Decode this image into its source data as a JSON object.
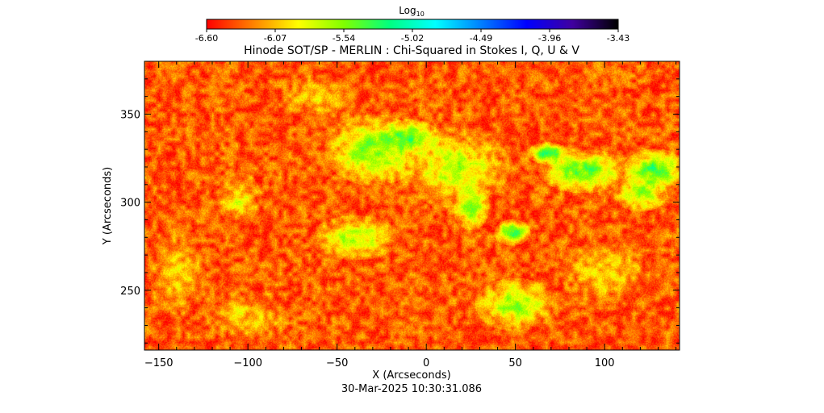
{
  "chart_data": {
    "type": "heatmap",
    "title": "Hinode SOT/SP - MERLIN : Chi-Squared in Stokes I, Q, U & V",
    "colorbar": {
      "label_base": "Log",
      "label_sub": "10",
      "min": -6.6,
      "max": -3.43,
      "ticks": [
        "-6.60",
        "-6.07",
        "-5.54",
        "-5.02",
        "-4.49",
        "-3.96",
        "-3.43"
      ],
      "colormap": [
        "#ff0000",
        "#ff8000",
        "#ffff00",
        "#80ff00",
        "#00ff80",
        "#00ffff",
        "#0080ff",
        "#0000ff",
        "#4000a0",
        "#000000"
      ]
    },
    "xlabel": "X (Arcseconds)",
    "ylabel": "Y (Arcseconds)",
    "xlim": [
      -158,
      142
    ],
    "ylim": [
      216,
      380
    ],
    "x_ticks": [
      -150,
      -100,
      -50,
      0,
      50,
      100
    ],
    "y_ticks": [
      250,
      300,
      350
    ],
    "x_tick_labels": [
      "−150",
      "−100",
      "−50",
      "0",
      "50",
      "100"
    ],
    "y_tick_labels": [
      "250",
      "300",
      "350"
    ],
    "background_level": -6.35,
    "regions": [
      {
        "x": -30,
        "y": 330,
        "rx": 22,
        "ry": 16,
        "level": -5.55
      },
      {
        "x": -10,
        "y": 337,
        "rx": 14,
        "ry": 8,
        "level": -5.35
      },
      {
        "x": 15,
        "y": 320,
        "rx": 25,
        "ry": 18,
        "level": -5.75
      },
      {
        "x": 25,
        "y": 297,
        "rx": 8,
        "ry": 10,
        "level": -5.55
      },
      {
        "x": 48,
        "y": 283,
        "rx": 8,
        "ry": 6,
        "level": -5.25
      },
      {
        "x": 68,
        "y": 328,
        "rx": 9,
        "ry": 5,
        "level": -5.25
      },
      {
        "x": 88,
        "y": 318,
        "rx": 20,
        "ry": 10,
        "level": -5.45
      },
      {
        "x": 128,
        "y": 318,
        "rx": 14,
        "ry": 10,
        "level": -5.35
      },
      {
        "x": 120,
        "y": 305,
        "rx": 12,
        "ry": 8,
        "level": -5.55
      },
      {
        "x": 50,
        "y": 242,
        "rx": 18,
        "ry": 12,
        "level": -5.65
      },
      {
        "x": -40,
        "y": 280,
        "rx": 20,
        "ry": 10,
        "level": -5.7
      },
      {
        "x": -105,
        "y": 302,
        "rx": 10,
        "ry": 12,
        "level": -5.9
      },
      {
        "x": -140,
        "y": 260,
        "rx": 12,
        "ry": 20,
        "level": -6.0
      },
      {
        "x": -60,
        "y": 360,
        "rx": 18,
        "ry": 10,
        "level": -6.0
      },
      {
        "x": 100,
        "y": 260,
        "rx": 20,
        "ry": 14,
        "level": -5.95
      },
      {
        "x": -100,
        "y": 235,
        "rx": 18,
        "ry": 12,
        "level": -6.0
      }
    ]
  },
  "timestamp": "30-Mar-2025 10:30:31.086"
}
